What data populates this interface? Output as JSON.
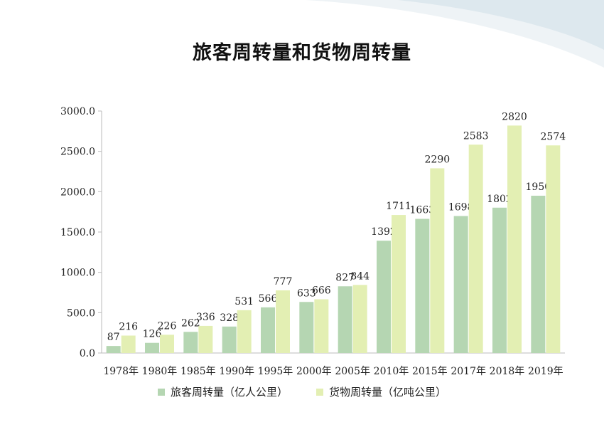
{
  "chart_data": {
    "type": "bar",
    "title": "旅客周转量和货物周转量",
    "categories": [
      "1978年",
      "1980年",
      "1985年",
      "1990年",
      "1995年",
      "2000年",
      "2005年",
      "2010年",
      "2015年",
      "2017年",
      "2018年",
      "2019年"
    ],
    "series": [
      {
        "name": "旅客周转量（亿人公里）",
        "color": "#b5d6b2",
        "values": [
          87,
          126,
          262,
          328,
          566,
          633,
          827,
          1392,
          1663,
          1698,
          1802,
          1950
        ]
      },
      {
        "name": "货物周转量（亿吨公里）",
        "color": "#e3efb3",
        "values": [
          216,
          226,
          336,
          531,
          777,
          666,
          844,
          1711,
          2290,
          2583,
          2820,
          2574
        ]
      }
    ],
    "ylim": [
      0,
      3000
    ],
    "yticks": [
      "0.0",
      "500.0",
      "1000.0",
      "1500.0",
      "2000.0",
      "2500.0",
      "3000.0"
    ],
    "grid": false,
    "legend_position": "bottom"
  }
}
